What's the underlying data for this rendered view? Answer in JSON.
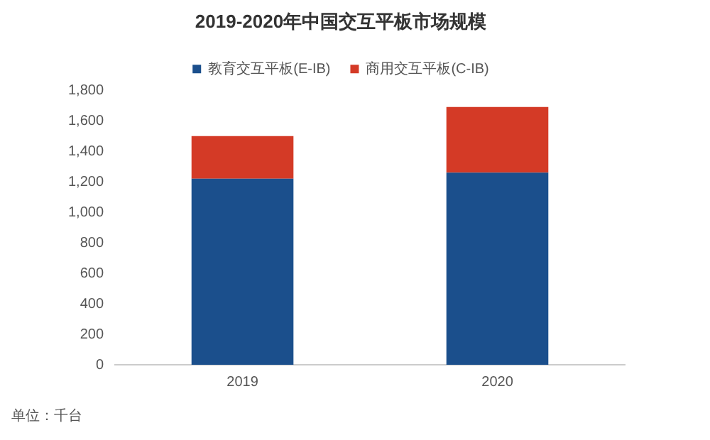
{
  "chart_data": {
    "type": "bar",
    "title": "2019-2020年中国交互平板市场规模",
    "categories": [
      "2019",
      "2020"
    ],
    "stacked": true,
    "series": [
      {
        "name": "教育交互平板(E-IB)",
        "color": "#1b4f8c",
        "values": [
          1220,
          1260
        ]
      },
      {
        "name": "商用交互平板(C-IB)",
        "color": "#d43a26",
        "values": [
          280,
          430
        ]
      }
    ],
    "ylim": [
      0,
      1800
    ],
    "yticks": [
      0,
      200,
      400,
      600,
      800,
      {
        "value": 1000,
        "label": "1,000"
      },
      {
        "value": 1200,
        "label": "1,200"
      },
      {
        "value": 1400,
        "label": "1,400"
      },
      {
        "value": 1600,
        "label": "1,600"
      },
      {
        "value": 1800,
        "label": "1,800"
      }
    ],
    "grid": false,
    "legend": "top",
    "annotations": [
      "单位：千台"
    ]
  }
}
